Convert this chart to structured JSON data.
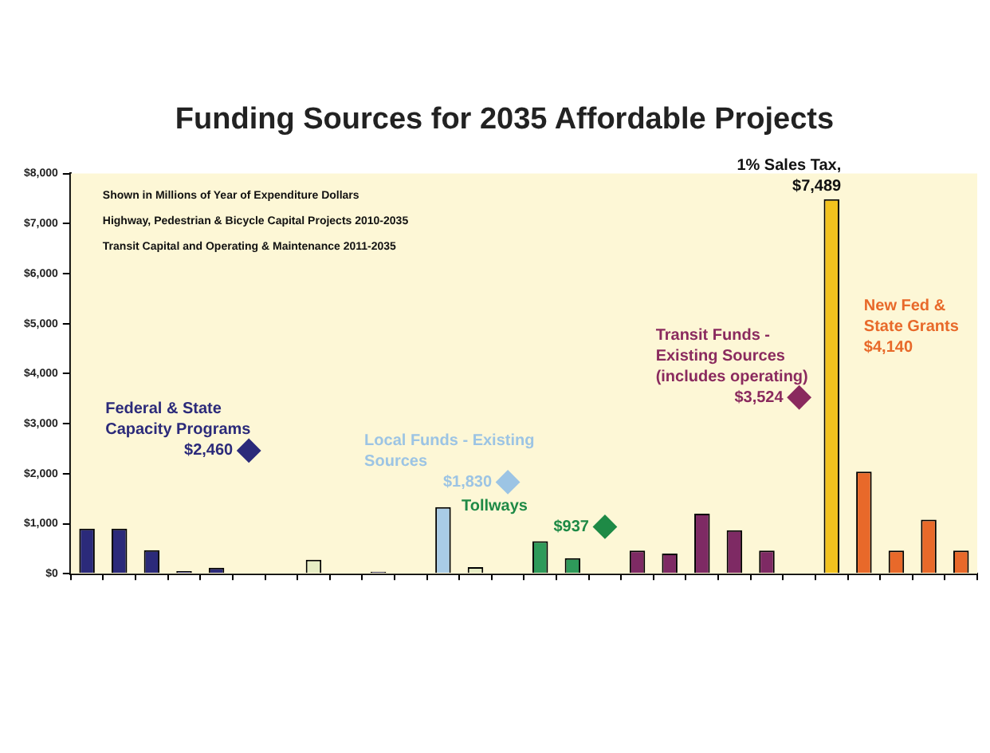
{
  "chart_data": {
    "type": "bar",
    "title": "Funding Sources for 2035 Affordable Projects",
    "annotations": [
      "Shown in Millions of Year of Expenditure Dollars",
      "Highway, Pedestrian & Bicycle Capital Projects 2010-2035",
      "Transit Capital and Operating & Maintenance 2011-2035",
      "$4,140"
    ],
    "categories": [
      null,
      null,
      null,
      null,
      null,
      null,
      null,
      null,
      null,
      null,
      null,
      null,
      null,
      null,
      null,
      null,
      null,
      null,
      null,
      null,
      null,
      null,
      null,
      null,
      null,
      null,
      null,
      null
    ],
    "stacked": true,
    "series": [
      {
        "values": [
          900,
          900,
          470,
          50,
          120,
          null,
          null,
          280,
          null,
          40,
          null,
          1330,
          130,
          null,
          650,
          310,
          null,
          460,
          400,
          1200,
          870,
          460,
          null,
          null,
          null,
          null,
          null,
          null
        ],
        "colors": [
          "#2b2a7a",
          "#2b2a7a",
          "#2b2a7a",
          "#2b2a7a",
          "#2b2a7a",
          "#2b2a7a",
          "#e6ecc4",
          "#e6ecc4",
          "#e6ecc4",
          "#2b2a7a",
          "#a9cce6",
          "#a9cce6",
          "#e6ecc4",
          "#e6ecc4",
          "#2e9a5a",
          "#2e9a5a",
          "#2e9a5a",
          "#7e2a64",
          "#7e2a64",
          "#7e2a64",
          "#7e2a64",
          "#7e2a64",
          "#7e2a64",
          "#f2c21e",
          "#e8692a",
          "#e8692a",
          "#e8692a",
          "#e8692a"
        ]
      },
      {
        "name": "1% Sales Tax,",
        "color": "#f2c21e",
        "values": [
          null,
          null,
          null,
          null,
          null,
          null,
          null,
          null,
          null,
          null,
          null,
          null,
          null,
          null,
          null,
          null,
          null,
          null,
          null,
          null,
          null,
          null,
          null,
          7489,
          null,
          null,
          null,
          null
        ],
        "value_labels": [
          null,
          null,
          null,
          null,
          null,
          null,
          null,
          null,
          null,
          null,
          null,
          null,
          null,
          null,
          null,
          null,
          null,
          null,
          null,
          null,
          null,
          null,
          null,
          "$7,489",
          null,
          null,
          null,
          null
        ]
      },
      {
        "name": "New Fed & State Grants",
        "color": "#e8692a",
        "values": [
          null,
          null,
          null,
          null,
          null,
          null,
          null,
          null,
          null,
          null,
          null,
          null,
          null,
          null,
          null,
          null,
          null,
          null,
          null,
          null,
          null,
          null,
          null,
          null,
          2040,
          460,
          1080,
          460
        ]
      },
      {
        "type": "scatter",
        "name": "Federal & State Capacity Programs",
        "color": "#2b2a7a",
        "values": [
          null,
          null,
          null,
          null,
          null,
          2460,
          null,
          null,
          null,
          null,
          null,
          null,
          null,
          null,
          null,
          null,
          null,
          null,
          null,
          null,
          null,
          null,
          null,
          null,
          null,
          null,
          null,
          null
        ],
        "value_labels": [
          null,
          null,
          null,
          null,
          null,
          "$2,460",
          null,
          null,
          null,
          null,
          null,
          null,
          null,
          null,
          null,
          null,
          null,
          null,
          null,
          null,
          null,
          null,
          null,
          null,
          null,
          null,
          null,
          null
        ]
      },
      {
        "type": "scatter",
        "name": "Local Funds - Existing Sources",
        "color": "#9cc4e4",
        "values": [
          null,
          null,
          null,
          null,
          null,
          null,
          null,
          null,
          null,
          null,
          null,
          null,
          null,
          1830,
          null,
          null,
          null,
          null,
          null,
          null,
          null,
          null,
          null,
          null,
          null,
          null,
          null,
          null
        ],
        "value_labels": [
          null,
          null,
          null,
          null,
          null,
          null,
          null,
          null,
          null,
          null,
          null,
          null,
          null,
          "$1,830",
          null,
          null,
          null,
          null,
          null,
          null,
          null,
          null,
          null,
          null,
          null,
          null,
          null,
          null
        ]
      },
      {
        "type": "scatter",
        "name": "Tollways",
        "color": "#1e8a46",
        "values": [
          null,
          null,
          null,
          null,
          null,
          null,
          null,
          null,
          null,
          null,
          null,
          null,
          null,
          null,
          null,
          null,
          937,
          null,
          null,
          null,
          null,
          null,
          null,
          null,
          null,
          null,
          null,
          null
        ],
        "value_labels": [
          null,
          null,
          null,
          null,
          null,
          null,
          null,
          null,
          null,
          null,
          null,
          null,
          null,
          null,
          null,
          null,
          "$937",
          null,
          null,
          null,
          null,
          null,
          null,
          null,
          null,
          null,
          null,
          null
        ]
      },
      {
        "type": "scatter",
        "name": "Transit Funds - Existing Sources (includes operating)",
        "color": "#8a2a5e",
        "values": [
          null,
          null,
          null,
          null,
          null,
          null,
          null,
          null,
          null,
          null,
          null,
          null,
          null,
          null,
          null,
          null,
          null,
          null,
          null,
          null,
          null,
          null,
          3524,
          null,
          null,
          null,
          null,
          null
        ],
        "value_labels": [
          null,
          null,
          null,
          null,
          null,
          null,
          null,
          null,
          null,
          null,
          null,
          null,
          null,
          null,
          null,
          null,
          null,
          null,
          null,
          null,
          null,
          null,
          "$3,524",
          null,
          null,
          null,
          null,
          null
        ]
      }
    ],
    "marker": "diamond",
    "ylim": [
      0,
      8000
    ],
    "yticks": [
      {
        "value": 0,
        "label": "$0"
      },
      {
        "value": 1000,
        "label": "$1,000"
      },
      {
        "value": 2000,
        "label": "$2,000"
      },
      {
        "value": 3000,
        "label": "$3,000"
      },
      {
        "value": 4000,
        "label": "$4,000"
      },
      {
        "value": 5000,
        "label": "$5,000"
      },
      {
        "value": 6000,
        "label": "$6,000"
      },
      {
        "value": 7000,
        "label": "$7,000"
      },
      {
        "value": 8000,
        "label": "$8,000"
      }
    ],
    "grid": false,
    "legend": false
  }
}
